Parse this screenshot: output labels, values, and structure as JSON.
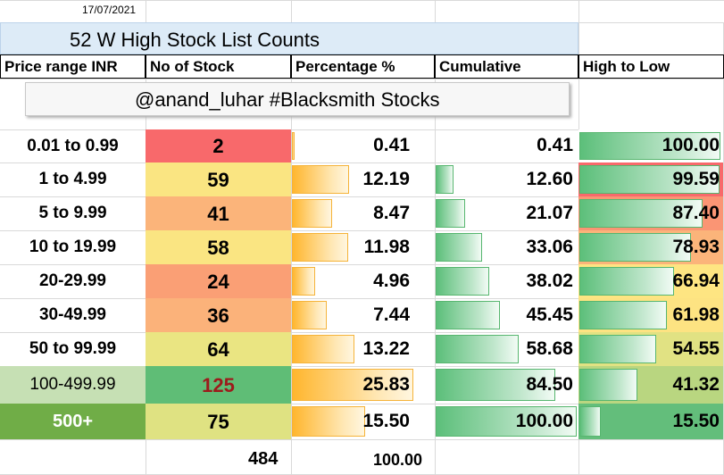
{
  "date": "17/07/2021",
  "title": "52 W High Stock List Counts",
  "watermark": "@anand_luhar #Blacksmith Stocks",
  "headers": [
    "Price range INR",
    "No of Stock",
    "Percentage %",
    "Cumulative",
    "High to Low"
  ],
  "rows": [
    {
      "range": "0.01 to 0.99",
      "count": "2",
      "pct": "0.41",
      "cum": "0.41",
      "h2l": "100.00",
      "pct_v": 0.41,
      "cum_v": 0.41,
      "h2l_v": 100.0,
      "count_bg": "#f8696b",
      "h2l_bg": "#ffffff"
    },
    {
      "range": "1 to 4.99",
      "count": "59",
      "pct": "12.19",
      "cum": "12.60",
      "h2l": "99.59",
      "pct_v": 12.19,
      "cum_v": 12.6,
      "h2l_v": 99.59,
      "count_bg": "#fae582",
      "h2l_bg": "#f8696b"
    },
    {
      "range": "5 to 9.99",
      "count": "41",
      "pct": "8.47",
      "cum": "21.07",
      "h2l": "87.40",
      "pct_v": 8.47,
      "cum_v": 21.07,
      "h2l_v": 87.4,
      "count_bg": "#fbb47a",
      "h2l_bg": "#fa9574"
    },
    {
      "range": "10 to 19.99",
      "count": "58",
      "pct": "11.98",
      "cum": "33.06",
      "h2l": "78.93",
      "pct_v": 11.98,
      "cum_v": 33.06,
      "h2l_v": 78.93,
      "count_bg": "#fae582",
      "h2l_bg": "#fbb47a"
    },
    {
      "range": "20-29.99",
      "count": "24",
      "pct": "4.96",
      "cum": "38.02",
      "h2l": "66.94",
      "pct_v": 4.96,
      "cum_v": 38.02,
      "h2l_v": 66.94,
      "count_bg": "#fa9f75",
      "h2l_bg": "#fee582"
    },
    {
      "range": "30-49.99",
      "count": "36",
      "pct": "7.44",
      "cum": "45.45",
      "h2l": "61.98",
      "pct_v": 7.44,
      "cum_v": 45.45,
      "h2l_v": 61.98,
      "count_bg": "#fbb27a",
      "h2l_bg": "#fde382"
    },
    {
      "range": "50 to 99.99",
      "count": "64",
      "pct": "13.22",
      "cum": "58.68",
      "h2l": "54.55",
      "pct_v": 13.22,
      "cum_v": 58.68,
      "h2l_v": 54.55,
      "count_bg": "#eae582",
      "h2l_bg": "#e1e283"
    },
    {
      "range": "100-499.99",
      "count": "125",
      "pct": "25.83",
      "cum": "84.50",
      "h2l": "41.32",
      "pct_v": 25.83,
      "cum_v": 84.5,
      "h2l_v": 41.32,
      "count_bg": "#5fbd76",
      "h2l_bg": "#b9d680",
      "count_color": "#9c1c1c",
      "range_bg": "#c6e0b4"
    },
    {
      "range": "500+",
      "count": "75",
      "pct": "15.50",
      "cum": "100.00",
      "h2l": "15.50",
      "pct_v": 15.5,
      "cum_v": 100.0,
      "h2l_v": 15.5,
      "count_bg": "#dfe282",
      "h2l_bg": "#63be7b",
      "range_bg": "#70ad47",
      "range_color": "#ffffff"
    }
  ],
  "total_count": "484",
  "total_pct": "100.00",
  "colors": {
    "title_bg": "#ddebf7",
    "orange_bar": "#ffb62e",
    "green_bar": "#5cbf7a"
  }
}
